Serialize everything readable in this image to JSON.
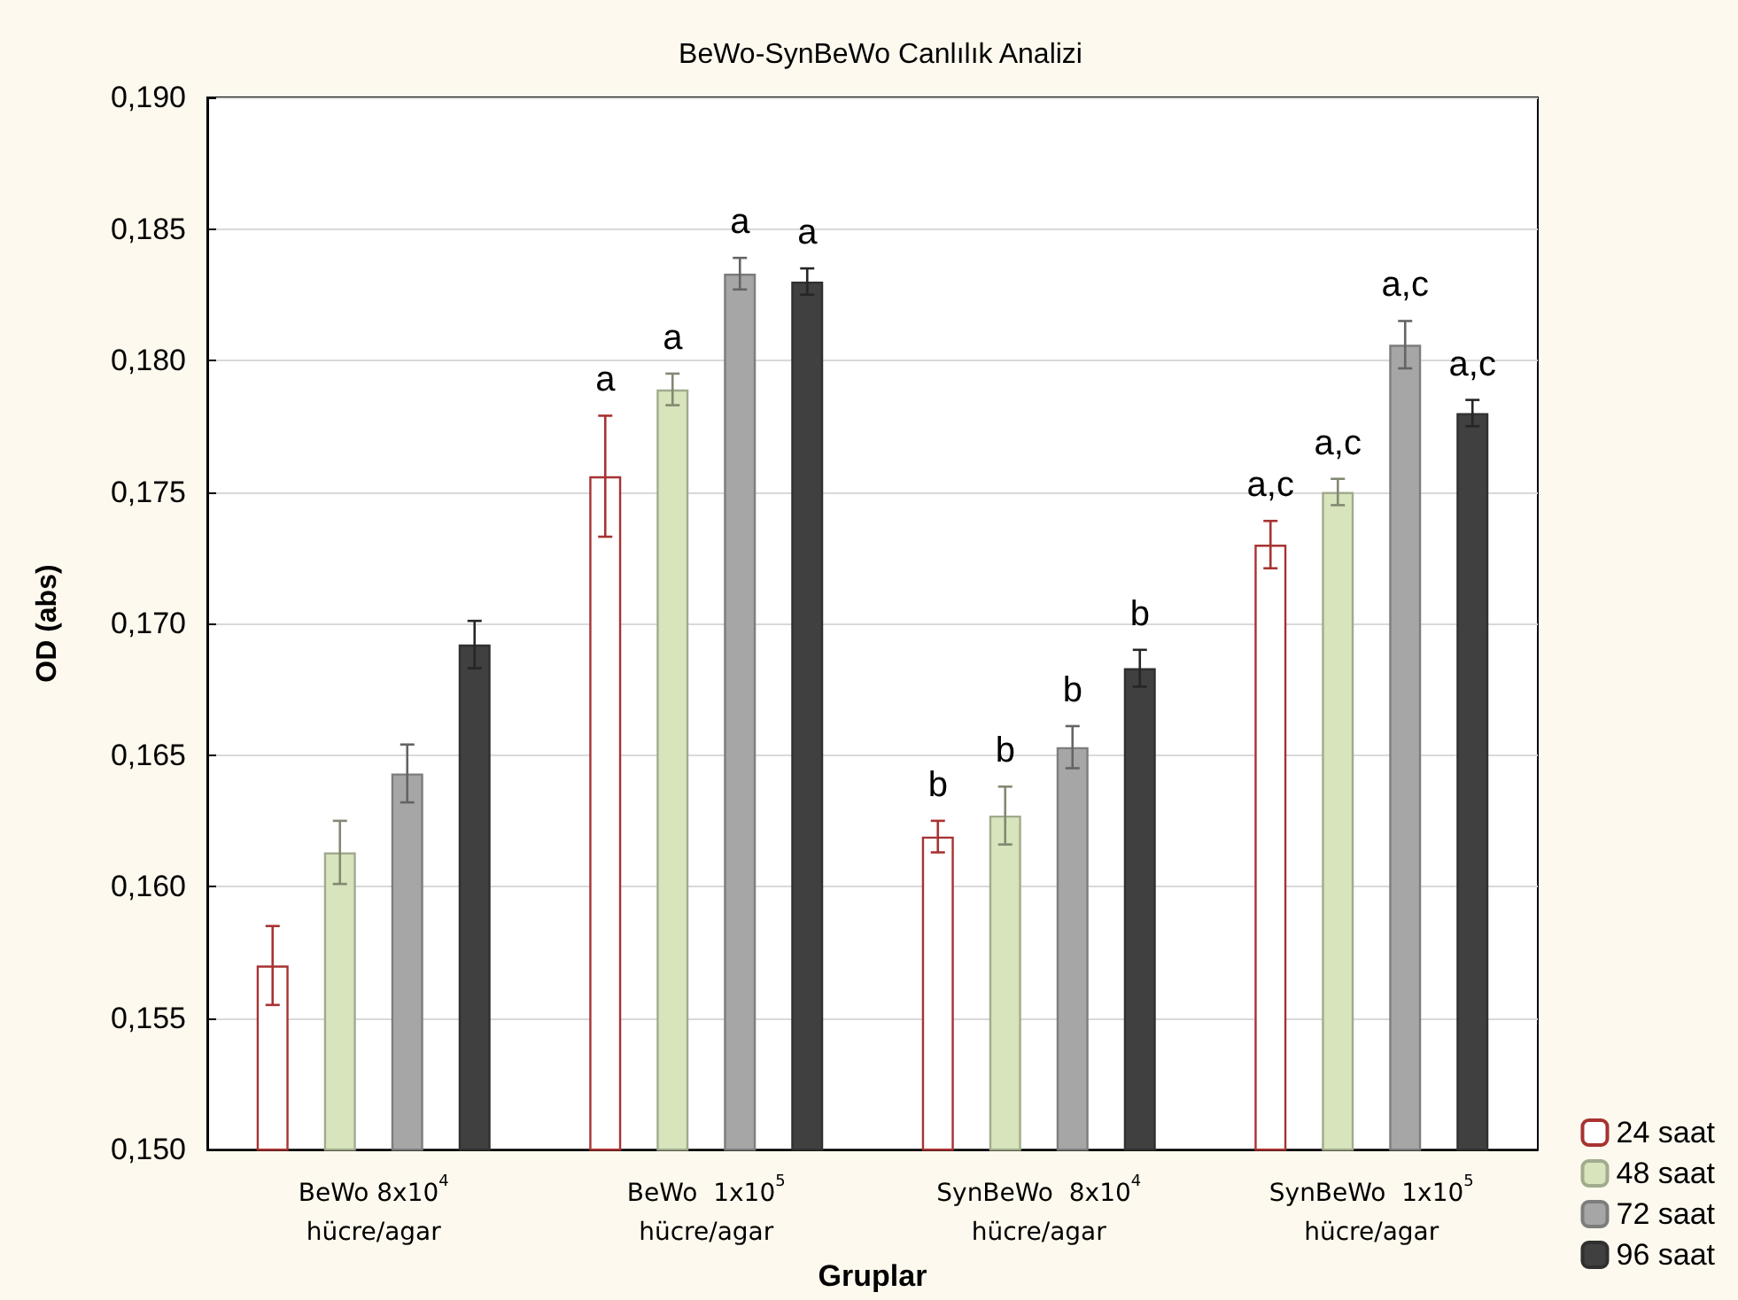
{
  "chart_data": {
    "type": "bar",
    "title": "BeWo-SynBeWo Canlılık Analizi",
    "xlabel": "Gruplar",
    "ylabel": "OD (abs)",
    "categories": [
      "BeWo 8x10$^{4}$\nhücre/agar",
      "BeWo  1x10$^{5}$\nhücre/agar",
      "SynBeWo  8x10$^{4}$\nhücre/agar",
      "SynBeWo  1x10$^{5}$\nhücre/agar"
    ],
    "series": [
      {
        "name": "24 saat",
        "color": "#ffffff",
        "values": [
          0.157,
          0.1756,
          0.1619,
          0.173
        ],
        "errors": [
          0.0015,
          0.0023,
          0.0006,
          0.0009
        ],
        "value_labels": [
          null,
          "a",
          "b",
          "a,c"
        ]
      },
      {
        "name": "48 saat",
        "color": "#d7e4bc",
        "values": [
          0.1613,
          0.1789,
          0.1627,
          0.175
        ],
        "errors": [
          0.0012,
          0.0006,
          0.0011,
          0.0005
        ],
        "value_labels": [
          null,
          "a",
          "b",
          "a,c"
        ]
      },
      {
        "name": "72 saat",
        "color": "#a6a6a6",
        "values": [
          0.1643,
          0.1833,
          0.1653,
          0.1806
        ],
        "errors": [
          0.0011,
          0.0006,
          0.0008,
          0.0009
        ],
        "value_labels": [
          null,
          "a",
          "b",
          "a,c"
        ]
      },
      {
        "name": "96 saat",
        "color": "#404040",
        "values": [
          0.1692,
          0.183,
          0.1683,
          0.178
        ],
        "errors": [
          0.0009,
          0.0005,
          0.0007,
          0.0005
        ],
        "value_labels": [
          null,
          "a",
          "b",
          "a,c"
        ]
      }
    ],
    "ylim": [
      0.15,
      0.19
    ],
    "yticks": [
      {
        "value": 0.15,
        "label": "0,150"
      },
      {
        "value": 0.155,
        "label": "0,155"
      },
      {
        "value": 0.16,
        "label": "0,160"
      },
      {
        "value": 0.165,
        "label": "0,165"
      },
      {
        "value": 0.17,
        "label": "0,170"
      },
      {
        "value": 0.175,
        "label": "0,175"
      },
      {
        "value": 0.18,
        "label": "0,180"
      },
      {
        "value": 0.185,
        "label": "0,185"
      },
      {
        "value": 0.19,
        "label": "0,190"
      }
    ],
    "grid": "y",
    "legend": "bottom right"
  }
}
